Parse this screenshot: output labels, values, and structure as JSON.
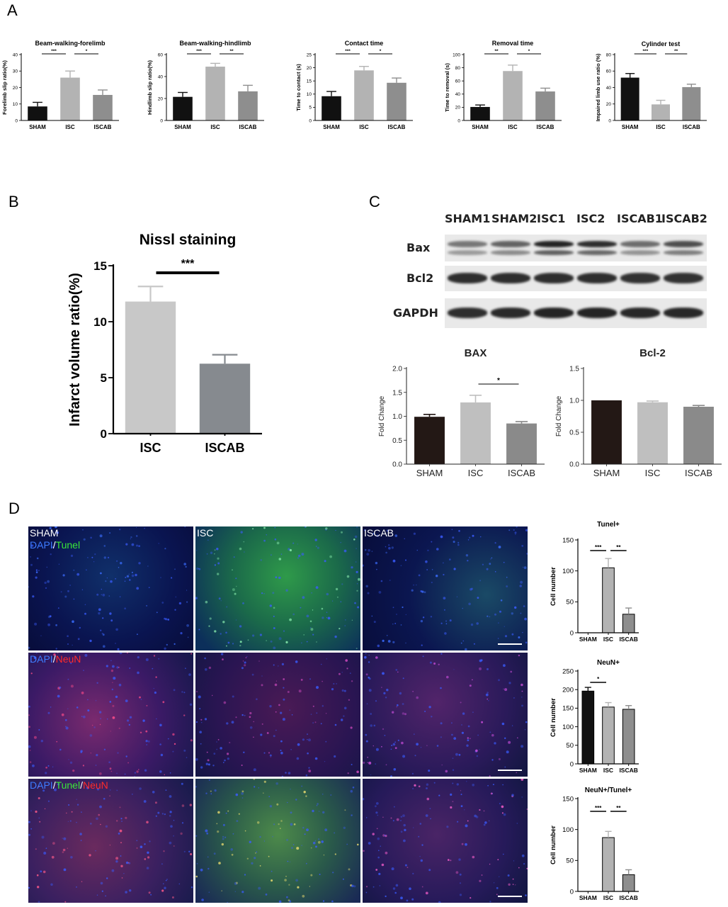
{
  "panels": {
    "A": "A",
    "B": "B",
    "C": "C",
    "D": "D"
  },
  "colors": {
    "sham": "#111111",
    "isc": "#b3b3b3",
    "iscab": "#8e8e8e",
    "sham_c": "#231815",
    "isc_c": "#bfbfbf",
    "iscab_c": "#8a8a8a",
    "nissl_isc": "#c8c8c8",
    "nissl_iscab": "#868a8f"
  },
  "chart_data": [
    {
      "id": "a1",
      "type": "bar",
      "title": "Beam-walking-forelimb",
      "categories": [
        "SHAM",
        "ISC",
        "ISCAB"
      ],
      "values": [
        8.5,
        26,
        15.5
      ],
      "errors": [
        2.5,
        4,
        3
      ],
      "ylabel": "Forelimb slip ratio(%)",
      "ylim": [
        0,
        40
      ],
      "yticks": [
        0,
        10,
        20,
        30,
        40
      ],
      "sig": [
        {
          "from": 0,
          "to": 1,
          "label": "***"
        },
        {
          "from": 1,
          "to": 2,
          "label": "*"
        }
      ]
    },
    {
      "id": "a2",
      "type": "bar",
      "title": "Beam-walking-hindlimb",
      "categories": [
        "SHAM",
        "ISC",
        "ISCAB"
      ],
      "values": [
        21.5,
        49,
        26.5
      ],
      "errors": [
        4,
        3,
        5.5
      ],
      "ylabel": "Hindlimb slip ratio(%)",
      "ylim": [
        0,
        60
      ],
      "yticks": [
        0,
        20,
        40,
        60
      ],
      "sig": [
        {
          "from": 0,
          "to": 1,
          "label": "***"
        },
        {
          "from": 1,
          "to": 2,
          "label": "**"
        }
      ]
    },
    {
      "id": "a3",
      "type": "bar",
      "title": "Contact time",
      "categories": [
        "SHAM",
        "ISC",
        "ISCAB"
      ],
      "values": [
        9.2,
        19,
        14.3
      ],
      "errors": [
        1.8,
        1.5,
        1.8
      ],
      "ylabel": "Time to contact  (s)",
      "ylim": [
        0,
        25
      ],
      "yticks": [
        0,
        5,
        10,
        15,
        20,
        25
      ],
      "sig": [
        {
          "from": 0,
          "to": 1,
          "label": "***"
        },
        {
          "from": 1,
          "to": 2,
          "label": "*"
        }
      ]
    },
    {
      "id": "a4",
      "type": "bar",
      "title": "Removal time",
      "categories": [
        "SHAM",
        "ISC",
        "ISCAB"
      ],
      "values": [
        20.5,
        75,
        44
      ],
      "errors": [
        3,
        9,
        5
      ],
      "ylabel": "Time to removal  (s)",
      "ylim": [
        0,
        100
      ],
      "yticks": [
        0,
        20,
        40,
        60,
        80,
        100
      ],
      "sig": [
        {
          "from": 0,
          "to": 1,
          "label": "**"
        },
        {
          "from": 1,
          "to": 2,
          "label": "*"
        }
      ]
    },
    {
      "id": "a5",
      "type": "bar",
      "title": "Cylinder test",
      "categories": [
        "SHAM",
        "ISC",
        "ISCAB"
      ],
      "values": [
        52,
        19.5,
        40.5
      ],
      "errors": [
        5,
        5,
        3.5
      ],
      "ylabel": "Impaired limb use ratio  (%)",
      "ylim": [
        0,
        80
      ],
      "yticks": [
        0,
        20,
        40,
        60,
        80
      ],
      "sig": [
        {
          "from": 0,
          "to": 1,
          "label": "***"
        },
        {
          "from": 1,
          "to": 2,
          "label": "**"
        }
      ]
    },
    {
      "id": "b",
      "type": "bar",
      "title": "Nissl staining",
      "categories": [
        "ISC",
        "ISCAB"
      ],
      "values": [
        11.8,
        6.25
      ],
      "errors": [
        1.35,
        0.8
      ],
      "ylabel": "Infarct volume ratio(%)",
      "ylim": [
        0,
        15
      ],
      "yticks": [
        0,
        5,
        10,
        15
      ],
      "sig": [
        {
          "from": 0,
          "to": 1,
          "label": "***"
        }
      ]
    },
    {
      "id": "c1",
      "type": "bar",
      "title": "BAX",
      "categories": [
        "SHAM",
        "ISC",
        "ISCAB"
      ],
      "values": [
        0.99,
        1.29,
        0.85
      ],
      "errors": [
        0.05,
        0.15,
        0.04
      ],
      "ylabel": "Fold Change",
      "ylim": [
        0,
        2.0
      ],
      "yticks": [
        0.0,
        0.5,
        1.0,
        1.5,
        2.0
      ],
      "sig": [
        {
          "from": 1,
          "to": 2,
          "label": "*"
        }
      ]
    },
    {
      "id": "c2",
      "type": "bar",
      "title": "Bcl-2",
      "categories": [
        "SHAM",
        "ISC",
        "ISCAB"
      ],
      "values": [
        1.0,
        0.97,
        0.9
      ],
      "errors": [
        0.0,
        0.02,
        0.02
      ],
      "ylabel": "Fold Change",
      "ylim": [
        0,
        1.5
      ],
      "yticks": [
        0.0,
        0.5,
        1.0,
        1.5
      ],
      "sig": []
    },
    {
      "id": "d1",
      "type": "bar",
      "title": "Tunel+",
      "categories": [
        "SHAM",
        "ISC",
        "ISCAB"
      ],
      "values": [
        0,
        105,
        30
      ],
      "errors": [
        0,
        15,
        10
      ],
      "ylabel": "Cell number",
      "ylim": [
        0,
        150
      ],
      "yticks": [
        0,
        50,
        100,
        150
      ],
      "sig": [
        {
          "from": 0,
          "to": 1,
          "label": "***"
        },
        {
          "from": 1,
          "to": 2,
          "label": "**"
        }
      ]
    },
    {
      "id": "d2",
      "type": "bar",
      "title": "NeuN+",
      "categories": [
        "SHAM",
        "ISC",
        "ISCAB"
      ],
      "values": [
        196,
        153,
        147
      ],
      "errors": [
        10,
        12,
        10
      ],
      "ylabel": "Cell number",
      "ylim": [
        0,
        250
      ],
      "yticks": [
        0,
        50,
        100,
        150,
        200,
        250
      ],
      "sig": [
        {
          "from": 0,
          "to": 1,
          "label": "*"
        }
      ]
    },
    {
      "id": "d3",
      "type": "bar",
      "title": "NeuN+/Tunel+",
      "categories": [
        "SHAM",
        "ISC",
        "ISCAB"
      ],
      "values": [
        0,
        87,
        27
      ],
      "errors": [
        0,
        10,
        8
      ],
      "ylabel": "Cell number",
      "ylim": [
        0,
        150
      ],
      "yticks": [
        0,
        50,
        100,
        150
      ],
      "sig": [
        {
          "from": 0,
          "to": 1,
          "label": "***"
        },
        {
          "from": 1,
          "to": 2,
          "label": "**"
        }
      ]
    }
  ],
  "blot": {
    "lanes": [
      "SHAM1",
      "SHAM2",
      "ISC1",
      "ISC2",
      "ISCAB1",
      "ISCAB2"
    ],
    "rows": [
      {
        "label": "Bax",
        "intensity": [
          0.55,
          0.65,
          0.95,
          0.9,
          0.6,
          0.75
        ],
        "doublet": true
      },
      {
        "label": "Bcl2",
        "intensity": [
          0.9,
          0.9,
          0.9,
          0.9,
          0.88,
          0.88
        ],
        "doublet": false
      },
      {
        "label": "GAPDH",
        "intensity": [
          0.9,
          0.92,
          0.95,
          0.95,
          0.93,
          0.93
        ],
        "doublet": false
      }
    ]
  },
  "micrographs": {
    "columns": [
      "SHAM",
      "ISC",
      "ISCAB"
    ],
    "rows": [
      {
        "stain": [
          {
            "t": "DAPI",
            "c": "#3d7bff"
          },
          {
            "t": "/",
            "c": "#ffffff"
          },
          {
            "t": "Tunel",
            "c": "#39e639"
          }
        ]
      },
      {
        "stain": [
          {
            "t": "DAPI",
            "c": "#3d7bff"
          },
          {
            "t": "/",
            "c": "#ffffff"
          },
          {
            "t": "NeuN",
            "c": "#ff2a2a"
          }
        ]
      },
      {
        "stain": [
          {
            "t": "DAPI",
            "c": "#3d7bff"
          },
          {
            "t": "/",
            "c": "#ffffff"
          },
          {
            "t": "Tunel",
            "c": "#39e639"
          },
          {
            "t": "/",
            "c": "#ffffff"
          },
          {
            "t": "NeuN",
            "c": "#ff2a2a"
          }
        ]
      }
    ],
    "tiles": [
      [
        "sham-tunel",
        "isc-tunel",
        "iscab-tunel"
      ],
      [
        "sham-neun",
        "isc-neun",
        "iscab-neun"
      ],
      [
        "sham-merge",
        "isc-merge",
        "iscab-merge"
      ]
    ]
  }
}
